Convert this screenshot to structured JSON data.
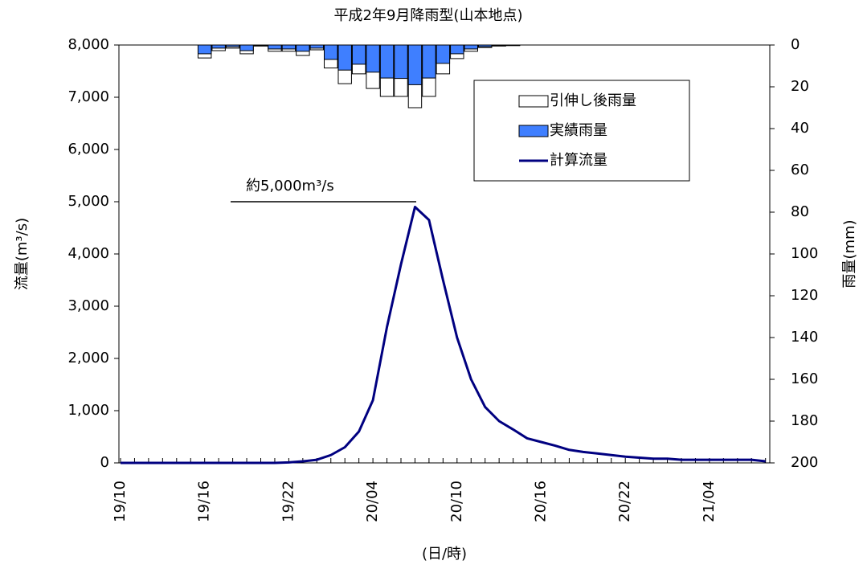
{
  "chart_data": {
    "type": "combo",
    "title": "平成2年9月降雨型(山本地点)",
    "x_label": "(日/時)",
    "y_label": "流量(m³/s)",
    "y2_label": "雨量(mm)",
    "annotation": "約5,000m³/s",
    "categories": [
      "19/10",
      null,
      null,
      null,
      null,
      null,
      "19/16",
      null,
      null,
      null,
      null,
      null,
      "19/22",
      null,
      null,
      null,
      null,
      null,
      "20/04",
      null,
      null,
      null,
      null,
      null,
      "20/10",
      null,
      null,
      null,
      null,
      null,
      "20/16",
      null,
      null,
      null,
      null,
      null,
      "20/22",
      null,
      null,
      null,
      null,
      null,
      "21/04",
      null,
      null,
      null,
      null
    ],
    "series": [
      {
        "name": "引伸し後雨量",
        "type": "bar",
        "axis": "y2",
        "color": "#ffffff",
        "values": [
          null,
          null,
          null,
          null,
          null,
          null,
          6.2,
          2.7,
          1.5,
          4.2,
          0.5,
          3,
          3,
          5,
          2.3,
          11,
          18.5,
          13.8,
          20.8,
          24.6,
          24.6,
          30,
          24.6,
          13.8,
          6.5,
          3,
          1.2,
          0.5,
          0.3,
          null,
          null,
          null,
          null,
          null,
          null,
          null,
          null,
          null,
          null,
          null,
          null,
          null,
          null,
          null,
          null,
          null,
          null
        ]
      },
      {
        "name": "実績雨量",
        "type": "bar",
        "axis": "y2",
        "color": "#3f7fff",
        "values": [
          null,
          null,
          null,
          null,
          null,
          null,
          4.2,
          1.5,
          0.8,
          2.7,
          0.3,
          1.9,
          1.9,
          3,
          1.5,
          6.9,
          12,
          9.2,
          13,
          15.8,
          16,
          19,
          15.8,
          8.8,
          4.2,
          1.9,
          0.8,
          0.3,
          0.2,
          null,
          null,
          null,
          null,
          null,
          null,
          null,
          null,
          null,
          null,
          null,
          null,
          null,
          null,
          null,
          null,
          null,
          null
        ]
      },
      {
        "name": "計算流量",
        "type": "line",
        "color": "#000080",
        "values": [
          0,
          0,
          0,
          0,
          0,
          0,
          0,
          0,
          0,
          0,
          0,
          0,
          10,
          30,
          60,
          150,
          300,
          600,
          1200,
          2600,
          3800,
          4900,
          4650,
          3500,
          2400,
          1600,
          1070,
          800,
          640,
          470,
          400,
          330,
          250,
          210,
          180,
          150,
          120,
          100,
          80,
          80,
          60,
          60,
          60,
          60,
          60,
          60,
          30
        ]
      }
    ],
    "ylim": [
      0,
      8000
    ],
    "yticks": [
      0,
      {
        "value": 1000,
        "label": "1,000"
      },
      {
        "value": 2000,
        "label": "2,000"
      },
      {
        "value": 3000,
        "label": "3,000"
      },
      {
        "value": 4000,
        "label": "4,000"
      },
      {
        "value": 5000,
        "label": "5,000"
      },
      {
        "value": 6000,
        "label": "6,000"
      },
      {
        "value": 7000,
        "label": "7,000"
      },
      {
        "value": 8000,
        "label": "8,000"
      }
    ],
    "y2lim": [
      0,
      200
    ],
    "y2_inverted": true,
    "y2ticks": [
      0,
      20,
      40,
      60,
      80,
      100,
      120,
      140,
      160,
      180,
      200
    ],
    "legend": "upper right"
  }
}
